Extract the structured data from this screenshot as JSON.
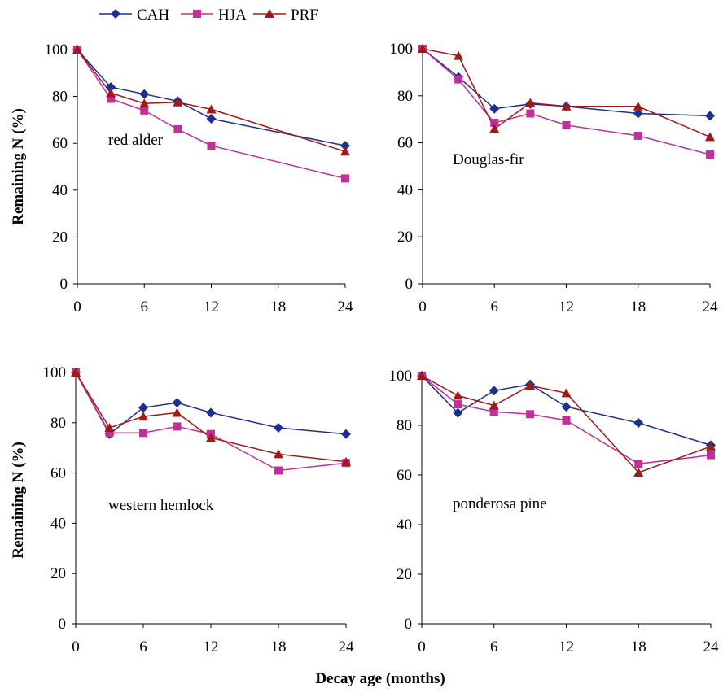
{
  "legend": [
    {
      "name": "CAH",
      "color": "#1F2F8F",
      "marker": "diamond"
    },
    {
      "name": "HJA",
      "color": "#C0309A",
      "marker": "square"
    },
    {
      "name": "PRF",
      "color": "#A01818",
      "marker": "triangle"
    }
  ],
  "ylabel": "Remaining N (%)",
  "xlabel": "Decay age (months)",
  "chart_data": [
    {
      "type": "line",
      "panel_label": "red alder",
      "x_ticks": [
        "0",
        "6",
        "12",
        "18",
        "24"
      ],
      "y_ticks": [
        "0",
        "20",
        "40",
        "60",
        "80",
        "100"
      ],
      "xlim": [
        0,
        24
      ],
      "ylim": [
        0,
        100
      ],
      "grid": false,
      "series": [
        {
          "name": "CAH",
          "x": [
            0,
            3,
            6,
            9,
            12,
            24
          ],
          "values": [
            100,
            84,
            81,
            78,
            70.5,
            59
          ]
        },
        {
          "name": "HJA",
          "x": [
            0,
            3,
            6,
            9,
            12,
            24
          ],
          "values": [
            100,
            79,
            74,
            66,
            59,
            45
          ]
        },
        {
          "name": "PRF",
          "x": [
            0,
            3,
            6,
            9,
            12,
            24
          ],
          "values": [
            100,
            81.5,
            77,
            77.5,
            74.5,
            56.5
          ]
        }
      ]
    },
    {
      "type": "line",
      "panel_label": "Douglas-fir",
      "x_ticks": [
        "0",
        "6",
        "12",
        "18",
        "24"
      ],
      "y_ticks": [
        "0",
        "20",
        "40",
        "60",
        "80",
        "100"
      ],
      "xlim": [
        0,
        24
      ],
      "ylim": [
        0,
        100
      ],
      "grid": false,
      "series": [
        {
          "name": "CAH",
          "x": [
            0,
            3,
            6,
            9,
            12,
            18,
            24
          ],
          "values": [
            100,
            88,
            74.5,
            76.5,
            75.5,
            72.5,
            71.5
          ]
        },
        {
          "name": "HJA",
          "x": [
            0,
            3,
            6,
            9,
            12,
            18,
            24
          ],
          "values": [
            100,
            87,
            68.5,
            72.5,
            67.5,
            63,
            55
          ]
        },
        {
          "name": "PRF",
          "x": [
            0,
            3,
            6,
            9,
            12,
            18,
            24
          ],
          "values": [
            100,
            97,
            66,
            77,
            75.5,
            75.5,
            62.5
          ]
        }
      ]
    },
    {
      "type": "line",
      "panel_label": "western hemlock",
      "x_ticks": [
        "0",
        "6",
        "12",
        "18",
        "24"
      ],
      "y_ticks": [
        "0",
        "20",
        "40",
        "60",
        "80",
        "100"
      ],
      "xlim": [
        0,
        24
      ],
      "ylim": [
        0,
        100
      ],
      "grid": false,
      "series": [
        {
          "name": "CAH",
          "x": [
            0,
            3,
            6,
            9,
            12,
            18,
            24
          ],
          "values": [
            100,
            75.5,
            86,
            88,
            84,
            78,
            75.5
          ]
        },
        {
          "name": "HJA",
          "x": [
            0,
            3,
            6,
            9,
            12,
            18,
            24
          ],
          "values": [
            100,
            76,
            76,
            78.5,
            75.5,
            61,
            64
          ]
        },
        {
          "name": "PRF",
          "x": [
            0,
            3,
            6,
            9,
            12,
            18,
            24
          ],
          "values": [
            100,
            78,
            82.5,
            84,
            74,
            67.5,
            64.5
          ]
        }
      ]
    },
    {
      "type": "line",
      "panel_label": "ponderosa pine",
      "x_ticks": [
        "0",
        "6",
        "12",
        "18",
        "24"
      ],
      "y_ticks": [
        "0",
        "20",
        "40",
        "60",
        "80",
        "100"
      ],
      "xlim": [
        0,
        24
      ],
      "ylim": [
        0,
        100
      ],
      "grid": false,
      "series": [
        {
          "name": "CAH",
          "x": [
            0,
            3,
            6,
            9,
            12,
            18,
            24
          ],
          "values": [
            100,
            85,
            94,
            96.5,
            87.5,
            81,
            72
          ]
        },
        {
          "name": "HJA",
          "x": [
            0,
            3,
            6,
            9,
            12,
            18,
            24
          ],
          "values": [
            100,
            88.5,
            85.5,
            84.5,
            82,
            64.5,
            68
          ]
        },
        {
          "name": "PRF",
          "x": [
            0,
            3,
            6,
            9,
            12,
            18,
            24
          ],
          "values": [
            100,
            92,
            88,
            96,
            93,
            61,
            71.5
          ]
        }
      ]
    }
  ]
}
